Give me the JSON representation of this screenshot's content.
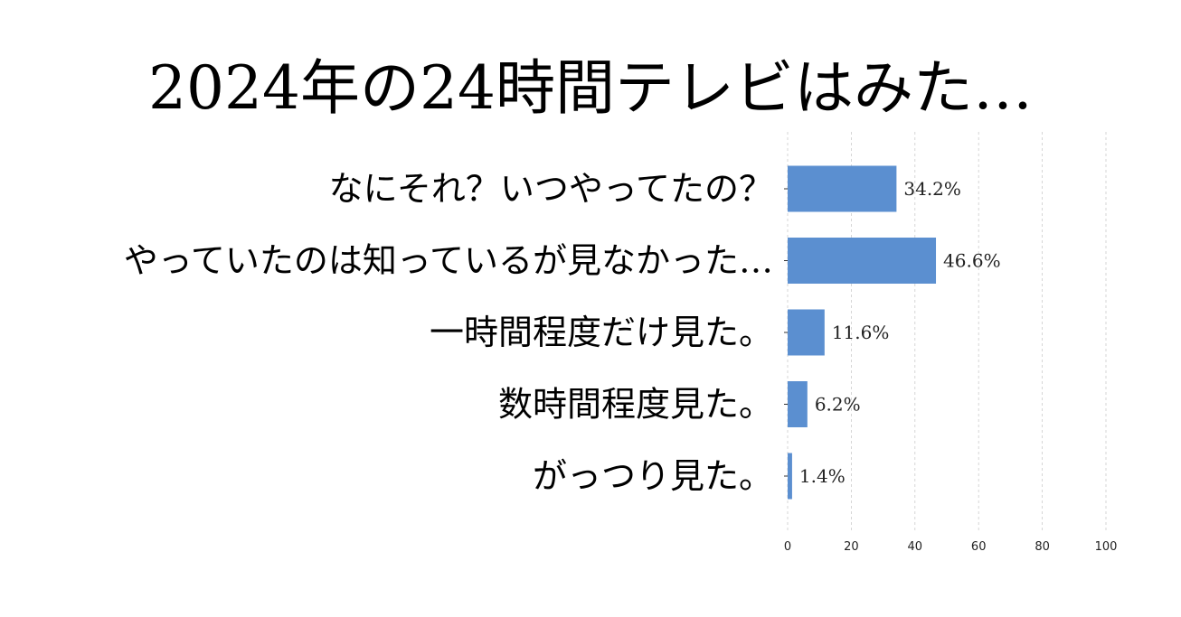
{
  "chart_data": {
    "type": "bar",
    "orientation": "horizontal",
    "title": "2024年の24時間テレビはみた…",
    "categories": [
      "なにそれ？いつやってたの？",
      "やっていたのは知っているが見なかった…",
      "一時間程度だけ見た。",
      "数時間程度見た。",
      "がっつり見た。"
    ],
    "values": [
      34.2,
      46.6,
      11.6,
      6.2,
      1.4
    ],
    "value_labels": [
      "34.2%",
      "46.6%",
      "11.6%",
      "6.2%",
      "1.4%"
    ],
    "xlim": [
      0,
      100
    ],
    "xticks": [
      0,
      20,
      40,
      60,
      80,
      100
    ],
    "xtick_labels": [
      "0",
      "20",
      "40",
      "60",
      "80",
      "100"
    ],
    "grid": "vertical dashed",
    "legend": "none",
    "bar_color": "#5b8fd0",
    "grid_color": "#cccccc"
  }
}
